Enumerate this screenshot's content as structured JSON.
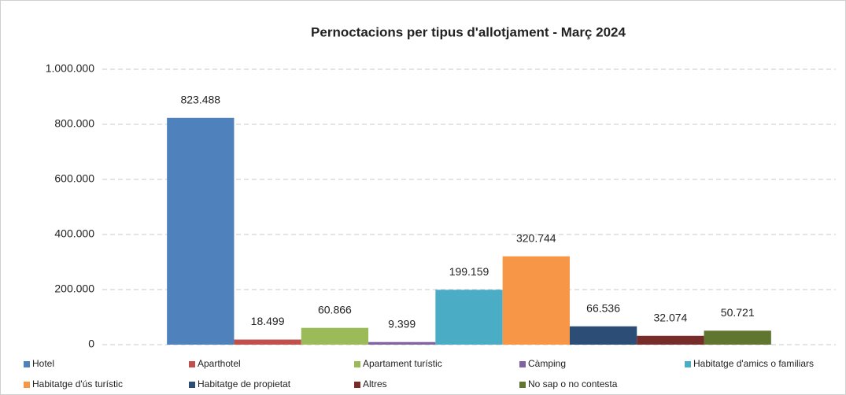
{
  "chart_data": {
    "type": "bar",
    "title": "Pernoctacions per tipus d'allotjament - Març 2024",
    "categories": [
      null
    ],
    "series": [
      {
        "name": "Hotel",
        "color": "#4f81bd",
        "values": [
          823488
        ],
        "value_labels": [
          "823.488"
        ]
      },
      {
        "name": "Aparthotel",
        "color": "#c0504d",
        "values": [
          18499
        ],
        "value_labels": [
          "18.499"
        ]
      },
      {
        "name": "Apartament turístic",
        "color": "#9bbb59",
        "values": [
          60866
        ],
        "value_labels": [
          "60.866"
        ]
      },
      {
        "name": "Càmping",
        "color": "#8064a2",
        "values": [
          9399
        ],
        "value_labels": [
          "9.399"
        ]
      },
      {
        "name": "Habitatge d'amics o familiars",
        "color": "#4bacc6",
        "values": [
          199159
        ],
        "value_labels": [
          "199.159"
        ]
      },
      {
        "name": "Habitatge d'ús turístic",
        "color": "#f79646",
        "values": [
          320744
        ],
        "value_labels": [
          "320.744"
        ]
      },
      {
        "name": "Habitatge de propietat",
        "color": "#2c4d75",
        "values": [
          66536
        ],
        "value_labels": [
          "66.536"
        ]
      },
      {
        "name": "Altres",
        "color": "#772c2a",
        "values": [
          32074
        ],
        "value_labels": [
          "32.074"
        ]
      },
      {
        "name": "No sap o no contesta",
        "color": "#5f7530",
        "values": [
          50721
        ],
        "value_labels": [
          "50.721"
        ]
      }
    ],
    "ylim": [
      0,
      1000000
    ],
    "yticks": [
      0,
      {
        "value": 200000,
        "label": "200.000"
      },
      {
        "value": 400000,
        "label": "400.000"
      },
      {
        "value": 600000,
        "label": "600.000"
      },
      {
        "value": 800000,
        "label": "800.000"
      },
      {
        "value": 1000000,
        "label": "1.000.000"
      }
    ],
    "grid": true
  }
}
